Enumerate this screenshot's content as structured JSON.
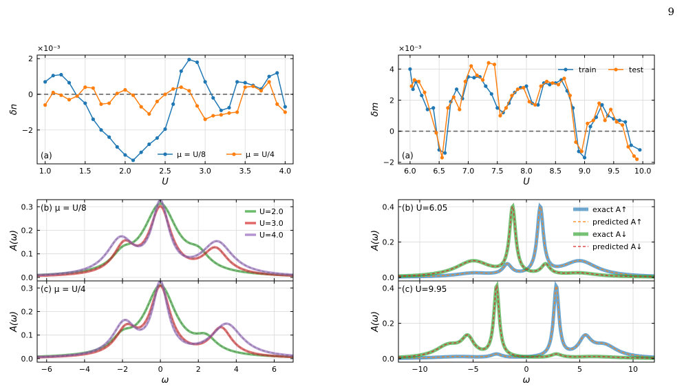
{
  "page_number": "9",
  "colors": {
    "blue": "#1f77b4",
    "orange": "#ff7f0e",
    "green": "#2ca02c",
    "red": "#d62728",
    "purple": "#9467bd"
  },
  "chart_data": [
    {
      "id": "dn",
      "type": "line",
      "scale_label": "×10⁻³",
      "tag": "(a)",
      "xlabel": "U",
      "ylabel": "δn",
      "xlim": [
        0.9,
        4.1
      ],
      "ylim": [
        -3.9,
        2.2
      ],
      "xticks": [
        1.0,
        1.5,
        2.0,
        2.5,
        3.0,
        3.5,
        4.0
      ],
      "xtick_labels": [
        "1.0",
        "1.5",
        "2.0",
        "2.5",
        "3.0",
        "3.5",
        "4.0"
      ],
      "yticks": [
        -2,
        0,
        2
      ],
      "ytick_labels": [
        "−2",
        "0",
        "2"
      ],
      "grid": true,
      "legend": "bottom-right",
      "zero_line": true,
      "series": [
        {
          "name": "μ = U/8",
          "color": "#1f77b4",
          "x": [
            1.0,
            1.1,
            1.2,
            1.3,
            1.4,
            1.5,
            1.6,
            1.7,
            1.8,
            1.9,
            2.0,
            2.1,
            2.2,
            2.3,
            2.4,
            2.5,
            2.6,
            2.7,
            2.8,
            2.9,
            3.0,
            3.1,
            3.2,
            3.3,
            3.4,
            3.5,
            3.6,
            3.7,
            3.8,
            3.9,
            4.0
          ],
          "y": [
            0.7,
            1.05,
            1.1,
            0.65,
            -0.1,
            -0.5,
            -1.4,
            -2.0,
            -2.4,
            -2.95,
            -3.4,
            -3.7,
            -3.25,
            -2.8,
            -2.45,
            -1.95,
            -0.55,
            1.3,
            1.95,
            1.8,
            0.7,
            -0.2,
            -0.9,
            -0.75,
            0.7,
            0.65,
            0.5,
            0.3,
            1.0,
            1.2,
            -0.7
          ]
        },
        {
          "name": "μ = U/4",
          "color": "#ff7f0e",
          "x": [
            1.0,
            1.1,
            1.2,
            1.3,
            1.4,
            1.5,
            1.6,
            1.7,
            1.8,
            1.9,
            2.0,
            2.1,
            2.2,
            2.3,
            2.4,
            2.5,
            2.6,
            2.7,
            2.8,
            2.9,
            3.0,
            3.1,
            3.2,
            3.3,
            3.4,
            3.5,
            3.6,
            3.7,
            3.8,
            3.9,
            4.0
          ],
          "y": [
            -0.6,
            0.1,
            -0.05,
            -0.3,
            -0.1,
            0.4,
            0.35,
            -0.55,
            -0.5,
            0.05,
            0.25,
            -0.05,
            -0.7,
            -1.1,
            -0.4,
            0.0,
            0.3,
            0.4,
            0.2,
            -0.65,
            -1.4,
            -1.2,
            -1.15,
            -1.05,
            -1.0,
            0.4,
            0.45,
            0.2,
            0.7,
            -0.55,
            -1.0
          ]
        }
      ]
    },
    {
      "id": "dm",
      "type": "line",
      "scale_label": "×10⁻³",
      "tag": "(a)",
      "xlabel": "U",
      "ylabel": "δm",
      "xlim": [
        5.8,
        10.2
      ],
      "ylim": [
        -2.1,
        4.9
      ],
      "xticks": [
        6.0,
        6.5,
        7.0,
        7.5,
        8.0,
        8.5,
        9.0,
        9.5,
        10.0
      ],
      "xtick_labels": [
        "6.0",
        "6.5",
        "7.0",
        "7.5",
        "8.0",
        "8.5",
        "9.0",
        "9.5",
        "10.0"
      ],
      "yticks": [
        -2,
        0,
        2,
        4
      ],
      "ytick_labels": [
        "−2",
        "0",
        "2",
        "4"
      ],
      "grid": true,
      "legend": "top-right",
      "zero_line": true,
      "series": [
        {
          "name": "train",
          "color": "#1f77b4",
          "x": [
            6.0,
            6.05,
            6.1,
            6.2,
            6.3,
            6.4,
            6.5,
            6.6,
            6.7,
            6.8,
            6.9,
            7.0,
            7.1,
            7.2,
            7.3,
            7.4,
            7.5,
            7.6,
            7.7,
            7.8,
            7.9,
            8.0,
            8.1,
            8.2,
            8.3,
            8.4,
            8.5,
            8.6,
            8.7,
            8.8,
            8.9,
            9.0,
            9.1,
            9.2,
            9.3,
            9.4,
            9.5,
            9.6,
            9.7,
            9.8,
            9.95
          ],
          "y": [
            4.0,
            2.7,
            3.2,
            2.3,
            1.4,
            1.5,
            -1.2,
            -1.4,
            1.9,
            2.7,
            2.1,
            3.5,
            3.45,
            3.5,
            2.9,
            2.4,
            1.5,
            1.2,
            1.8,
            2.5,
            2.8,
            2.9,
            1.8,
            1.7,
            3.1,
            3.0,
            3.1,
            3.3,
            2.6,
            1.5,
            -1.3,
            -1.7,
            0.3,
            0.9,
            1.7,
            1.0,
            0.8,
            0.7,
            0.6,
            -0.9,
            -1.2
          ]
        },
        {
          "name": "test",
          "color": "#ff7f0e",
          "x": [
            6.025,
            6.075,
            6.15,
            6.25,
            6.45,
            6.55,
            6.65,
            6.75,
            6.85,
            6.95,
            7.05,
            7.15,
            7.25,
            7.35,
            7.45,
            7.55,
            7.65,
            7.75,
            7.85,
            7.95,
            8.05,
            8.15,
            8.25,
            8.35,
            8.45,
            8.55,
            8.65,
            8.75,
            8.85,
            8.95,
            9.05,
            9.15,
            9.25,
            9.35,
            9.45,
            9.55,
            9.65,
            9.75,
            9.85,
            9.9
          ],
          "y": [
            2.9,
            3.3,
            3.2,
            2.5,
            -0.1,
            -1.7,
            1.5,
            2.2,
            1.4,
            3.2,
            4.2,
            3.6,
            3.3,
            4.4,
            4.3,
            1.0,
            1.5,
            2.3,
            2.7,
            2.8,
            1.9,
            1.7,
            2.9,
            3.2,
            3.1,
            3.0,
            3.4,
            2.3,
            -0.7,
            -1.3,
            0.5,
            0.7,
            1.8,
            0.7,
            1.4,
            0.6,
            0.4,
            -1.0,
            -1.6,
            -1.8
          ]
        }
      ]
    },
    {
      "id": "A8",
      "type": "line",
      "tag": "(b) μ = U/8",
      "ylabel": "A(ω)",
      "xlabel": "",
      "xlim": [
        -6.5,
        7.0
      ],
      "ylim": [
        -0.015,
        0.33
      ],
      "xticks": [
        -6,
        -4,
        -2,
        0,
        2,
        4,
        6
      ],
      "xtick_labels": [],
      "yticks": [
        0.0,
        0.1,
        0.2,
        0.3
      ],
      "ytick_labels": [
        "0.0",
        "0.1",
        "0.2",
        "0.3"
      ],
      "grid": true,
      "legend": "top-right",
      "series": [
        {
          "name": "U=2.0",
          "color": "#2ca02c",
          "peaks": [
            [
              0.0,
              0.3,
              1.1
            ],
            [
              -2.0,
              0.06,
              0.7
            ],
            [
              2.0,
              0.06,
              0.7
            ]
          ]
        },
        {
          "name": "U=3.0",
          "color": "#d62728",
          "peaks": [
            [
              0.0,
              0.28,
              0.7
            ],
            [
              -1.9,
              0.12,
              0.7
            ],
            [
              2.9,
              0.11,
              0.8
            ]
          ]
        },
        {
          "name": "U=4.0",
          "color": "#9467bd",
          "peaks": [
            [
              0.0,
              0.29,
              0.55
            ],
            [
              -2.1,
              0.15,
              0.9
            ],
            [
              3.0,
              0.14,
              1.0
            ]
          ]
        }
      ]
    },
    {
      "id": "A4",
      "type": "line",
      "tag": "(c) μ = U/4",
      "ylabel": "A(ω)",
      "xlabel": "ω",
      "xlim": [
        -6.5,
        7.0
      ],
      "ylim": [
        -0.015,
        0.33
      ],
      "xticks": [
        -6,
        -4,
        -2,
        0,
        2,
        4,
        6
      ],
      "xtick_labels": [
        "−6",
        "−4",
        "−2",
        "0",
        "2",
        "4",
        "6"
      ],
      "yticks": [
        0.0,
        0.1,
        0.2,
        0.3
      ],
      "ytick_labels": [
        "0.0",
        "0.1",
        "0.2",
        "0.3"
      ],
      "grid": true,
      "legend": "none",
      "series": [
        {
          "name": "U=2.0",
          "color": "#2ca02c",
          "peaks": [
            [
              0.0,
              0.3,
              1.0
            ],
            [
              -2.0,
              0.06,
              0.7
            ],
            [
              2.4,
              0.06,
              0.7
            ]
          ]
        },
        {
          "name": "U=3.0",
          "color": "#d62728",
          "peaks": [
            [
              0.0,
              0.29,
              0.65
            ],
            [
              -1.8,
              0.11,
              0.7
            ],
            [
              3.2,
              0.12,
              0.7
            ]
          ]
        },
        {
          "name": "U=4.0",
          "color": "#9467bd",
          "peaks": [
            [
              0.0,
              0.3,
              0.5
            ],
            [
              -1.9,
              0.14,
              0.75
            ],
            [
              3.5,
              0.14,
              1.0
            ]
          ]
        }
      ]
    },
    {
      "id": "Ab",
      "type": "line",
      "tag": "(b) U=6.05",
      "ylabel": "A(ω)",
      "xlabel": "",
      "xlim": [
        -12.0,
        12.0
      ],
      "ylim": [
        -0.02,
        0.44
      ],
      "xticks": [
        -10,
        -5,
        0,
        5,
        10
      ],
      "xtick_labels": [],
      "yticks": [
        0.0,
        0.2,
        0.4
      ],
      "ytick_labels": [
        "0.0",
        "0.2",
        "0.4"
      ],
      "grid": true,
      "legend": "top-right",
      "legend_entries": [
        "exact A↑",
        "predicted A↑",
        "exact A↓",
        "predicted A↓"
      ],
      "series": [
        {
          "name": "A↑",
          "color": "#1f77b4",
          "peaks": [
            [
              1.3,
              0.38,
              0.35
            ],
            [
              -1.8,
              0.06,
              0.5
            ],
            [
              -5.0,
              0.02,
              2.0
            ],
            [
              5.0,
              0.09,
              2.0
            ]
          ]
        },
        {
          "name": "A↓",
          "color": "#2ca02c",
          "peaks": [
            [
              -1.3,
              0.38,
              0.35
            ],
            [
              1.8,
              0.06,
              0.5
            ],
            [
              5.0,
              0.02,
              2.0
            ],
            [
              -5.0,
              0.09,
              2.0
            ]
          ]
        }
      ]
    },
    {
      "id": "Ac",
      "type": "line",
      "tag": "(c) U=9.95",
      "ylabel": "A(ω)",
      "xlabel": "ω",
      "xlim": [
        -12.0,
        12.0
      ],
      "ylim": [
        -0.02,
        0.44
      ],
      "xticks": [
        -10,
        -5,
        0,
        5,
        10
      ],
      "xtick_labels": [
        "−10",
        "−5",
        "0",
        "5",
        "10"
      ],
      "yticks": [
        0.0,
        0.2,
        0.4
      ],
      "ytick_labels": [
        "0.0",
        "0.2",
        "0.4"
      ],
      "grid": true,
      "legend": "none",
      "series": [
        {
          "name": "A↑",
          "color": "#1f77b4",
          "peaks": [
            [
              2.8,
              0.4,
              0.3
            ],
            [
              -2.8,
              0.02,
              0.6
            ],
            [
              5.5,
              0.1,
              0.7
            ],
            [
              7.3,
              0.07,
              1.5
            ],
            [
              -6.5,
              0.01,
              2.5
            ]
          ]
        },
        {
          "name": "A↓",
          "color": "#2ca02c",
          "peaks": [
            [
              -2.8,
              0.4,
              0.3
            ],
            [
              2.8,
              0.02,
              0.6
            ],
            [
              -5.5,
              0.1,
              0.7
            ],
            [
              -7.3,
              0.07,
              1.5
            ],
            [
              6.5,
              0.01,
              2.5
            ]
          ]
        }
      ]
    }
  ]
}
